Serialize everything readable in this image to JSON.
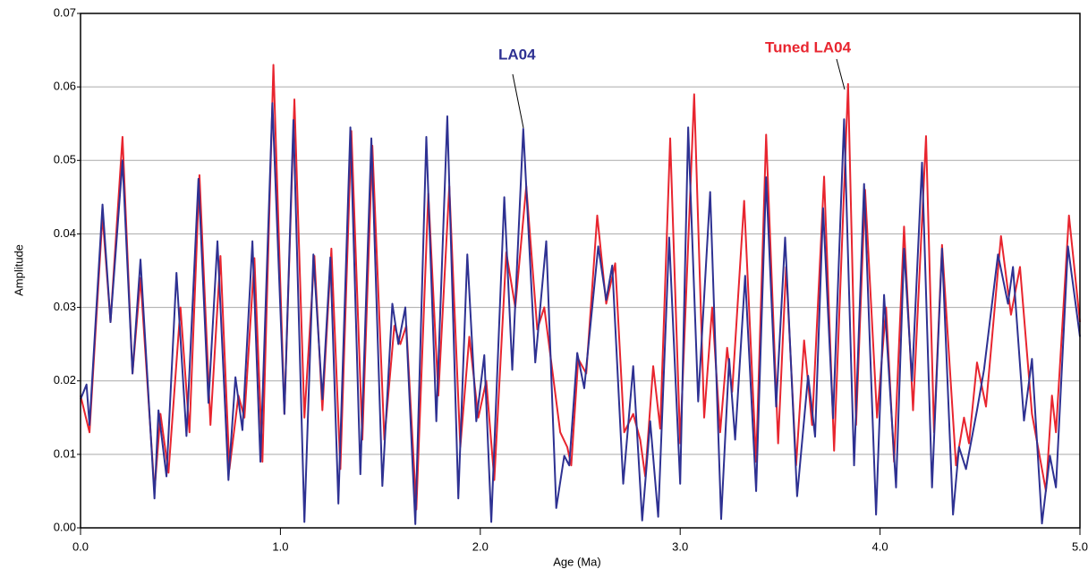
{
  "chart_data": {
    "type": "line",
    "x_label": "Age (Ma)",
    "y_label": "Amplitude",
    "xlim": [
      0,
      5
    ],
    "ylim": [
      0,
      0.07
    ],
    "xticks": [
      {
        "value": 0,
        "label": "0.0"
      },
      {
        "value": 1,
        "label": "1.0"
      },
      {
        "value": 2,
        "label": "2.0"
      },
      {
        "value": 3,
        "label": "3.0"
      },
      {
        "value": 4,
        "label": "4.0"
      },
      {
        "value": 5,
        "label": "5.0"
      }
    ],
    "yticks": [
      {
        "value": 0,
        "label": "0.00"
      },
      {
        "value": 0.01,
        "label": "0.01"
      },
      {
        "value": 0.02,
        "label": "0.02"
      },
      {
        "value": 0.03,
        "label": "0.03"
      },
      {
        "value": 0.04,
        "label": "0.04"
      },
      {
        "value": 0.05,
        "label": "0.05"
      },
      {
        "value": 0.06,
        "label": "0.06"
      },
      {
        "value": 0.07,
        "label": "0.07"
      }
    ],
    "grid": true,
    "series": [
      {
        "name": "Tuned LA04",
        "color": "#e8252f",
        "x": [
          0,
          0.045,
          0.11,
          0.15,
          0.21,
          0.26,
          0.3,
          0.37,
          0.4,
          0.44,
          0.5,
          0.545,
          0.595,
          0.65,
          0.7,
          0.745,
          0.79,
          0.82,
          0.87,
          0.91,
          0.965,
          1.02,
          1.07,
          1.12,
          1.17,
          1.21,
          1.255,
          1.3,
          1.355,
          1.41,
          1.46,
          1.52,
          1.57,
          1.6,
          1.63,
          1.68,
          1.74,
          1.79,
          1.845,
          1.9,
          1.945,
          1.99,
          2.03,
          2.07,
          2.13,
          2.175,
          2.23,
          2.285,
          2.32,
          2.4,
          2.435,
          2.455,
          2.49,
          2.53,
          2.585,
          2.63,
          2.675,
          2.72,
          2.765,
          2.8,
          2.825,
          2.865,
          2.9,
          2.95,
          3.0,
          3.07,
          3.12,
          3.16,
          3.2,
          3.235,
          3.26,
          3.32,
          3.38,
          3.43,
          3.49,
          3.53,
          3.58,
          3.62,
          3.66,
          3.72,
          3.77,
          3.84,
          3.88,
          3.925,
          3.985,
          4.03,
          4.07,
          4.12,
          4.165,
          4.23,
          4.27,
          4.31,
          4.38,
          4.42,
          4.445,
          4.485,
          4.53,
          4.605,
          4.655,
          4.7,
          4.76,
          4.83,
          4.86,
          4.88,
          4.945,
          5.0
        ],
        "values": [
          0.018,
          0.013,
          0.0425,
          0.028,
          0.0532,
          0.021,
          0.034,
          0.005,
          0.0155,
          0.0075,
          0.03,
          0.013,
          0.048,
          0.014,
          0.037,
          0.008,
          0.018,
          0.015,
          0.0367,
          0.009,
          0.063,
          0.0155,
          0.0583,
          0.015,
          0.037,
          0.016,
          0.038,
          0.008,
          0.054,
          0.012,
          0.052,
          0.012,
          0.0275,
          0.025,
          0.0275,
          0.0025,
          0.0455,
          0.018,
          0.0465,
          0.011,
          0.026,
          0.015,
          0.02,
          0.0065,
          0.0375,
          0.03,
          0.0465,
          0.027,
          0.03,
          0.013,
          0.011,
          0.0085,
          0.023,
          0.021,
          0.0425,
          0.0305,
          0.036,
          0.013,
          0.0155,
          0.012,
          0.007,
          0.022,
          0.0135,
          0.053,
          0.0115,
          0.059,
          0.015,
          0.03,
          0.013,
          0.0245,
          0.0185,
          0.0445,
          0.009,
          0.0535,
          0.0115,
          0.0355,
          0.0085,
          0.0255,
          0.014,
          0.0478,
          0.0105,
          0.0604,
          0.014,
          0.046,
          0.015,
          0.03,
          0.009,
          0.041,
          0.016,
          0.0533,
          0.013,
          0.0385,
          0.0085,
          0.015,
          0.0115,
          0.0225,
          0.0165,
          0.0397,
          0.029,
          0.0355,
          0.0155,
          0.005,
          0.018,
          0.013,
          0.0425,
          0.028
        ]
      },
      {
        "name": "LA04",
        "color": "#2e3192",
        "x": [
          0,
          0.03,
          0.045,
          0.11,
          0.15,
          0.21,
          0.26,
          0.3,
          0.37,
          0.39,
          0.43,
          0.48,
          0.53,
          0.59,
          0.64,
          0.685,
          0.74,
          0.775,
          0.81,
          0.86,
          0.9,
          0.96,
          1.02,
          1.065,
          1.12,
          1.165,
          1.21,
          1.25,
          1.29,
          1.35,
          1.4,
          1.455,
          1.51,
          1.56,
          1.59,
          1.625,
          1.675,
          1.73,
          1.78,
          1.835,
          1.89,
          1.935,
          1.98,
          2.02,
          2.055,
          2.12,
          2.16,
          2.215,
          2.275,
          2.33,
          2.38,
          2.42,
          2.445,
          2.485,
          2.52,
          2.59,
          2.63,
          2.66,
          2.715,
          2.765,
          2.81,
          2.85,
          2.89,
          2.945,
          3.0,
          3.04,
          3.09,
          3.15,
          3.205,
          3.245,
          3.275,
          3.325,
          3.38,
          3.43,
          3.48,
          3.525,
          3.585,
          3.64,
          3.675,
          3.715,
          3.765,
          3.82,
          3.87,
          3.92,
          3.98,
          4.02,
          4.08,
          4.12,
          4.16,
          4.21,
          4.26,
          4.31,
          4.365,
          4.395,
          4.43,
          4.485,
          4.52,
          4.59,
          4.64,
          4.665,
          4.72,
          4.76,
          4.81,
          4.85,
          4.88,
          4.94,
          5.0
        ],
        "values": [
          0.0175,
          0.0195,
          0.014,
          0.044,
          0.028,
          0.05,
          0.021,
          0.0365,
          0.004,
          0.016,
          0.007,
          0.0347,
          0.0125,
          0.0475,
          0.017,
          0.039,
          0.0065,
          0.0205,
          0.0133,
          0.039,
          0.009,
          0.0578,
          0.0155,
          0.0555,
          0.0008,
          0.0372,
          0.0175,
          0.0368,
          0.0033,
          0.0545,
          0.0073,
          0.053,
          0.0057,
          0.0305,
          0.025,
          0.03,
          0.0005,
          0.0532,
          0.0145,
          0.056,
          0.004,
          0.0372,
          0.0145,
          0.0235,
          0.0008,
          0.045,
          0.0215,
          0.0543,
          0.0225,
          0.039,
          0.0027,
          0.0098,
          0.0085,
          0.0238,
          0.019,
          0.0383,
          0.031,
          0.0357,
          0.006,
          0.022,
          0.001,
          0.0145,
          0.0015,
          0.0395,
          0.006,
          0.0545,
          0.0172,
          0.0457,
          0.0012,
          0.023,
          0.012,
          0.0343,
          0.005,
          0.0477,
          0.0165,
          0.0395,
          0.0043,
          0.0207,
          0.0124,
          0.0435,
          0.0149,
          0.0556,
          0.0085,
          0.0468,
          0.0018,
          0.0317,
          0.0055,
          0.038,
          0.02,
          0.0497,
          0.0055,
          0.038,
          0.0018,
          0.011,
          0.008,
          0.016,
          0.0215,
          0.0372,
          0.0305,
          0.0355,
          0.0146,
          0.023,
          0.0006,
          0.0098,
          0.0055,
          0.0383,
          0.026
        ]
      }
    ]
  }
}
